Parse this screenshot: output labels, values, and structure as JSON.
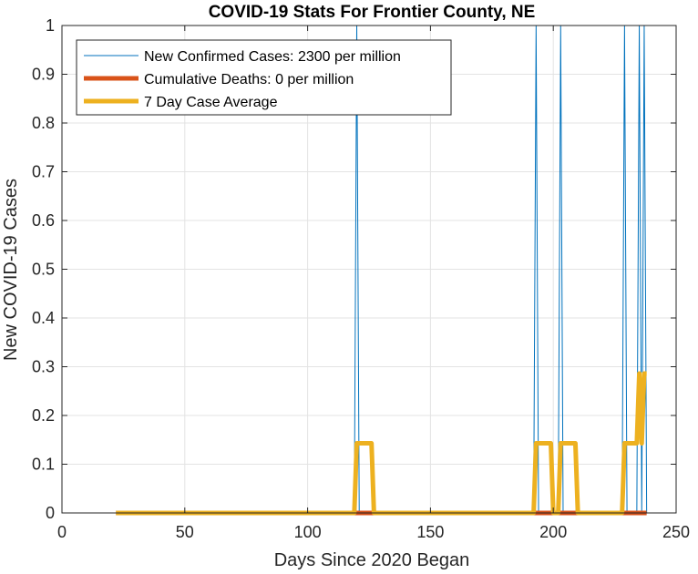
{
  "chart_data": {
    "type": "line",
    "title": "COVID-19 Stats For Frontier County, NE",
    "xlabel": "Days Since 2020 Began",
    "ylabel": "New COVID-19 Cases",
    "xlim": [
      0,
      250
    ],
    "ylim": [
      0,
      1
    ],
    "xticks": [
      "0",
      "50",
      "100",
      "150",
      "200",
      "250"
    ],
    "yticks": [
      "0",
      "0.1",
      "0.2",
      "0.3",
      "0.4",
      "0.5",
      "0.6",
      "0.7",
      "0.8",
      "0.9",
      "1"
    ],
    "grid": true,
    "legend_position": "top-left",
    "series": [
      {
        "name": "New Confirmed Cases: 2300 per million",
        "color": "#0072BD",
        "x": [
          22,
          119,
          120,
          121,
          192,
          193,
          194,
          202,
          203,
          204,
          228,
          229,
          230,
          234,
          235,
          236,
          237,
          238
        ],
        "y": [
          0,
          0,
          1,
          0,
          0,
          1,
          0,
          0,
          1,
          0,
          0,
          1,
          0,
          0,
          1,
          0,
          1,
          0
        ]
      },
      {
        "name": "Cumulative Deaths: 0 per million",
        "color": "#D95319",
        "x": [
          22,
          238
        ],
        "y": [
          0,
          0
        ]
      },
      {
        "name": "7 Day Case Average",
        "color": "#EDB120",
        "x": [
          22,
          119,
          120,
          126,
          127,
          192,
          193,
          199,
          200,
          202,
          203,
          209,
          210,
          228,
          229,
          234,
          235,
          236,
          237,
          238
        ],
        "y": [
          0,
          0,
          0.143,
          0.143,
          0,
          0,
          0.143,
          0.143,
          0,
          0,
          0.143,
          0.143,
          0,
          0,
          0.143,
          0.143,
          0.286,
          0.143,
          0.286,
          0.286
        ]
      }
    ]
  }
}
